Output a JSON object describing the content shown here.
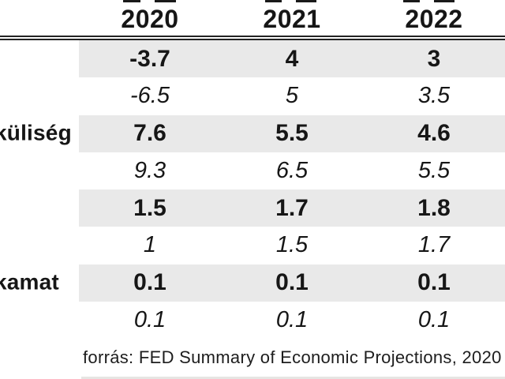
{
  "chart_data": {
    "type": "table",
    "title": "",
    "columns": [
      "2020",
      "2021",
      "2022"
    ],
    "rows": [
      {
        "label": "",
        "style": "bold",
        "values": [
          "-3.7",
          "4",
          "3"
        ]
      },
      {
        "label": "",
        "style": "italic",
        "values": [
          "-6.5",
          "5",
          "3.5"
        ]
      },
      {
        "label": "küliség",
        "style": "bold",
        "values": [
          "7.6",
          "5.5",
          "4.6"
        ]
      },
      {
        "label": "",
        "style": "italic",
        "values": [
          "9.3",
          "6.5",
          "5.5"
        ]
      },
      {
        "label": "",
        "style": "bold",
        "values": [
          "1.5",
          "1.7",
          "1.8"
        ]
      },
      {
        "label": "",
        "style": "italic",
        "values": [
          "1",
          "1.5",
          "1.7"
        ]
      },
      {
        "label": "kamat",
        "style": "bold",
        "values": [
          "0.1",
          "0.1",
          "0.1"
        ]
      },
      {
        "label": "",
        "style": "italic",
        "values": [
          "0.1",
          "0.1",
          "0.1"
        ]
      }
    ],
    "source_note": "forrás: FED Summary of Economic Projections, 2020",
    "layout_hints": {
      "stripe_rows": [
        1,
        3,
        5,
        7
      ],
      "header_rule": "double",
      "label_column_cropped": true
    }
  },
  "colors": {
    "row_stripe": "#e9e9e9",
    "rule": "#222222",
    "text": "#161616"
  }
}
